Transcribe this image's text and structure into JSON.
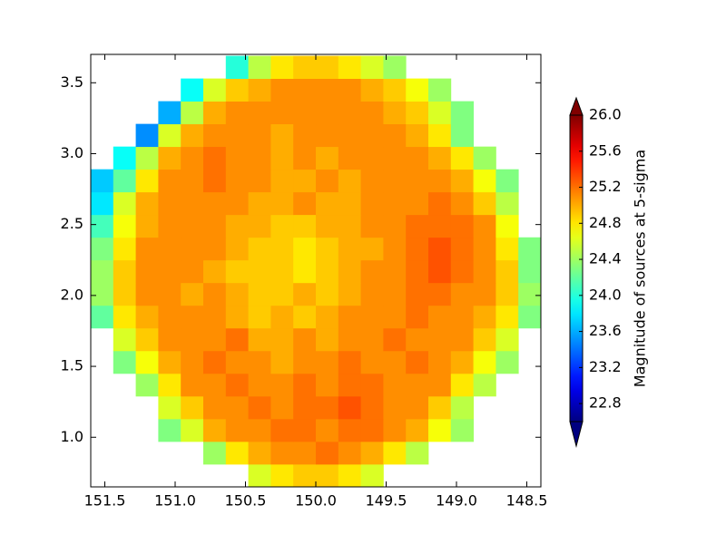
{
  "chart_data": {
    "type": "heatmap",
    "xbins": [
      151.6,
      151.44,
      151.28,
      151.12,
      150.96,
      150.8,
      150.64,
      150.48,
      150.32,
      150.16,
      150.0,
      149.84,
      149.68,
      149.52,
      149.36,
      149.2,
      149.04,
      148.88,
      148.72,
      148.56,
      148.4
    ],
    "ybins": [
      0.65,
      0.81,
      0.97,
      1.13,
      1.29,
      1.45,
      1.61,
      1.77,
      1.93,
      2.09,
      2.25,
      2.41,
      2.57,
      2.73,
      2.89,
      3.05,
      3.21,
      3.37,
      3.53,
      3.69
    ],
    "z": [
      [
        null,
        null,
        null,
        null,
        null,
        null,
        null,
        24.6,
        24.8,
        24.9,
        24.9,
        24.8,
        24.6,
        null,
        null,
        null,
        null,
        null,
        null,
        null
      ],
      [
        null,
        null,
        null,
        null,
        null,
        24.4,
        24.8,
        25.0,
        25.1,
        25.1,
        25.2,
        25.1,
        25.0,
        24.8,
        24.5,
        null,
        null,
        null,
        null,
        null
      ],
      [
        null,
        null,
        null,
        24.3,
        24.6,
        25.0,
        25.1,
        25.1,
        25.2,
        25.2,
        25.1,
        25.2,
        25.2,
        25.1,
        25.0,
        24.7,
        24.4,
        null,
        null,
        null
      ],
      [
        null,
        null,
        null,
        24.6,
        24.9,
        25.1,
        25.1,
        25.2,
        25.1,
        25.2,
        25.2,
        25.3,
        25.2,
        25.1,
        25.1,
        24.9,
        24.5,
        null,
        null,
        null
      ],
      [
        null,
        null,
        24.4,
        24.8,
        25.1,
        25.1,
        25.2,
        25.1,
        25.1,
        25.2,
        25.1,
        25.2,
        25.2,
        25.1,
        25.1,
        25.1,
        24.8,
        24.5,
        null,
        null
      ],
      [
        null,
        24.3,
        24.7,
        25.0,
        25.1,
        25.2,
        25.1,
        25.1,
        25.0,
        25.1,
        25.1,
        25.2,
        25.1,
        25.1,
        25.2,
        25.1,
        25.0,
        24.7,
        24.4,
        null
      ],
      [
        null,
        24.6,
        24.9,
        25.1,
        25.1,
        25.1,
        25.2,
        25.0,
        25.0,
        25.1,
        25.0,
        25.1,
        25.1,
        25.2,
        25.1,
        25.1,
        25.1,
        24.9,
        24.6,
        null
      ],
      [
        24.2,
        24.8,
        25.0,
        25.1,
        25.1,
        25.1,
        25.0,
        24.9,
        25.0,
        24.9,
        25.0,
        25.1,
        25.1,
        25.1,
        25.2,
        25.1,
        25.1,
        25.0,
        24.8,
        24.3
      ],
      [
        24.4,
        24.9,
        25.1,
        25.1,
        25.0,
        25.1,
        25.0,
        24.9,
        24.9,
        25.0,
        24.9,
        25.0,
        25.1,
        25.1,
        25.2,
        25.2,
        25.1,
        25.1,
        24.9,
        24.4
      ],
      [
        24.4,
        24.9,
        25.1,
        25.1,
        25.1,
        25.0,
        24.9,
        24.9,
        24.9,
        24.8,
        24.9,
        25.0,
        25.1,
        25.1,
        25.2,
        25.3,
        25.2,
        25.1,
        24.9,
        24.3
      ],
      [
        24.3,
        24.8,
        25.1,
        25.1,
        25.1,
        25.1,
        25.0,
        24.9,
        24.9,
        24.8,
        24.9,
        25.0,
        25.0,
        25.1,
        25.2,
        25.3,
        25.2,
        25.1,
        24.8,
        24.3
      ],
      [
        24.1,
        24.7,
        25.0,
        25.1,
        25.1,
        25.1,
        25.0,
        25.0,
        24.9,
        24.9,
        25.0,
        25.0,
        25.1,
        25.1,
        25.2,
        25.2,
        25.2,
        25.1,
        24.7,
        null
      ],
      [
        23.8,
        24.6,
        25.0,
        25.1,
        25.1,
        25.1,
        25.1,
        25.0,
        25.0,
        25.1,
        25.0,
        25.0,
        25.1,
        25.1,
        25.1,
        25.2,
        25.1,
        24.9,
        24.5,
        null
      ],
      [
        23.7,
        24.2,
        24.8,
        25.1,
        25.1,
        25.2,
        25.1,
        25.1,
        25.0,
        25.0,
        25.1,
        25.0,
        25.1,
        25.1,
        25.1,
        25.1,
        25.0,
        24.7,
        24.3,
        null
      ],
      [
        null,
        23.9,
        24.5,
        25.0,
        25.1,
        25.2,
        25.1,
        25.1,
        25.0,
        25.1,
        25.0,
        25.1,
        25.1,
        25.1,
        25.1,
        25.0,
        24.8,
        24.4,
        null,
        null
      ],
      [
        null,
        null,
        23.5,
        24.6,
        25.0,
        25.1,
        25.1,
        25.1,
        25.0,
        25.1,
        25.1,
        25.1,
        25.1,
        25.1,
        25.0,
        24.8,
        24.3,
        null,
        null,
        null
      ],
      [
        null,
        null,
        null,
        23.6,
        24.5,
        25.0,
        25.1,
        25.1,
        25.1,
        25.1,
        25.1,
        25.1,
        25.1,
        25.0,
        24.9,
        24.6,
        24.3,
        null,
        null,
        null
      ],
      [
        null,
        null,
        null,
        null,
        23.9,
        24.6,
        24.9,
        25.0,
        25.1,
        25.1,
        25.1,
        25.1,
        25.0,
        24.9,
        24.7,
        24.4,
        null,
        null,
        null,
        null
      ],
      [
        null,
        null,
        null,
        null,
        null,
        null,
        24.0,
        24.5,
        24.8,
        24.9,
        24.9,
        24.8,
        24.6,
        24.4,
        null,
        null,
        null,
        null,
        null,
        null
      ]
    ],
    "xlim": [
      151.6,
      148.4
    ],
    "ylim": [
      0.65,
      3.7
    ],
    "xticks": [
      151.5,
      {
        "value": 151,
        "label": "151.0"
      },
      150.5,
      {
        "value": 150,
        "label": "150.0"
      },
      149.5,
      {
        "value": 149,
        "label": "149.0"
      },
      148.5
    ],
    "yticks": [
      {
        "value": 1,
        "label": "1.0"
      },
      1.5,
      {
        "value": 2,
        "label": "2.0"
      },
      2.5,
      {
        "value": 3,
        "label": "3.0"
      },
      3.5
    ],
    "colormap": "jet",
    "clim": [
      22.6,
      26.0
    ],
    "colorbar_ticks": [
      22.8,
      23.2,
      23.6,
      {
        "value": 24,
        "label": "24.0"
      },
      24.4,
      24.8,
      25.2,
      25.6,
      {
        "value": 26,
        "label": "26.0"
      }
    ],
    "colorbar_label": "Magnitude of sources at 5-sigma"
  }
}
